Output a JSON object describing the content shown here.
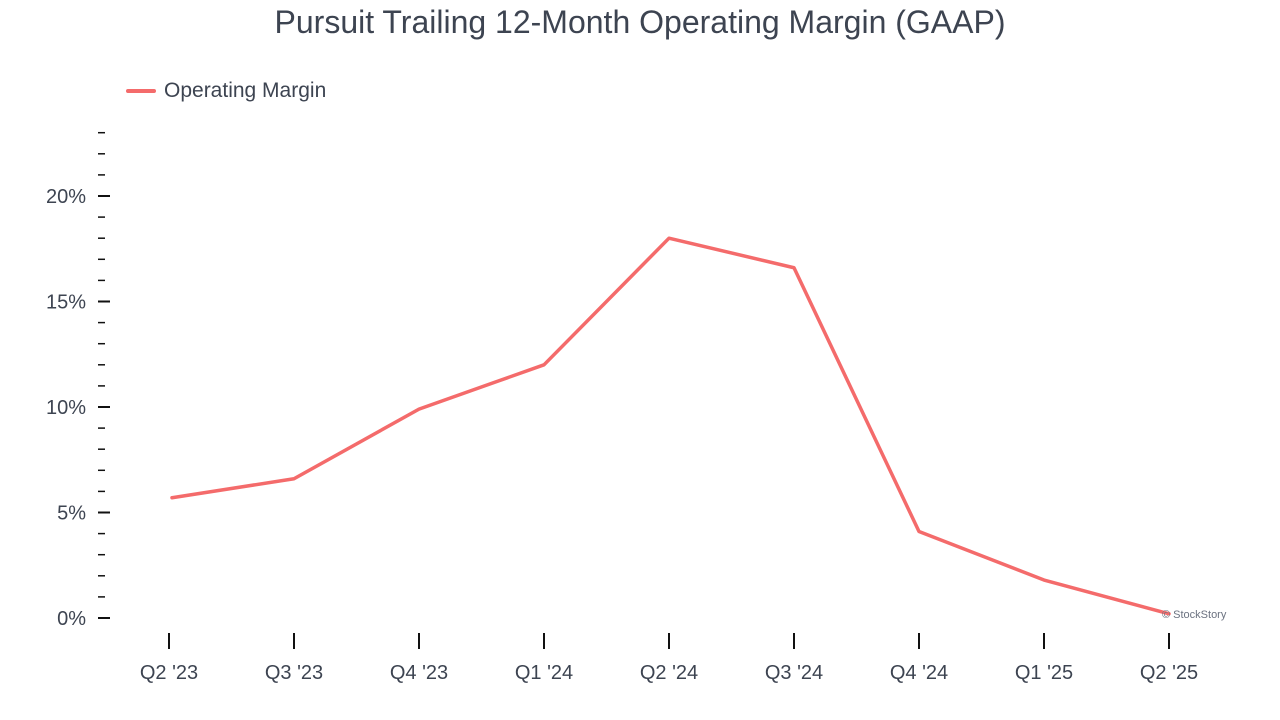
{
  "chart_data": {
    "type": "line",
    "title": "Pursuit Trailing 12-Month Operating Margin (GAAP)",
    "categories": [
      "Q2 '23",
      "Q3 '23",
      "Q4 '23",
      "Q1 '24",
      "Q2 '24",
      "Q3 '24",
      "Q4 '24",
      "Q1 '25",
      "Q2 '25"
    ],
    "series": [
      {
        "name": "Operating Margin",
        "color": "#f46b6b",
        "values": [
          5.7,
          6.6,
          9.9,
          12.0,
          18.0,
          16.6,
          4.1,
          1.8,
          0.2
        ]
      }
    ],
    "yticks": [
      0,
      5,
      10,
      15,
      20
    ],
    "ytick_labels": [
      "0%",
      "5%",
      "10%",
      "15%",
      "20%"
    ],
    "ylim": [
      0,
      23
    ],
    "xlabel": "",
    "ylabel": "",
    "legend_position": "top-left",
    "grid": false,
    "watermark": "© StockStory"
  }
}
